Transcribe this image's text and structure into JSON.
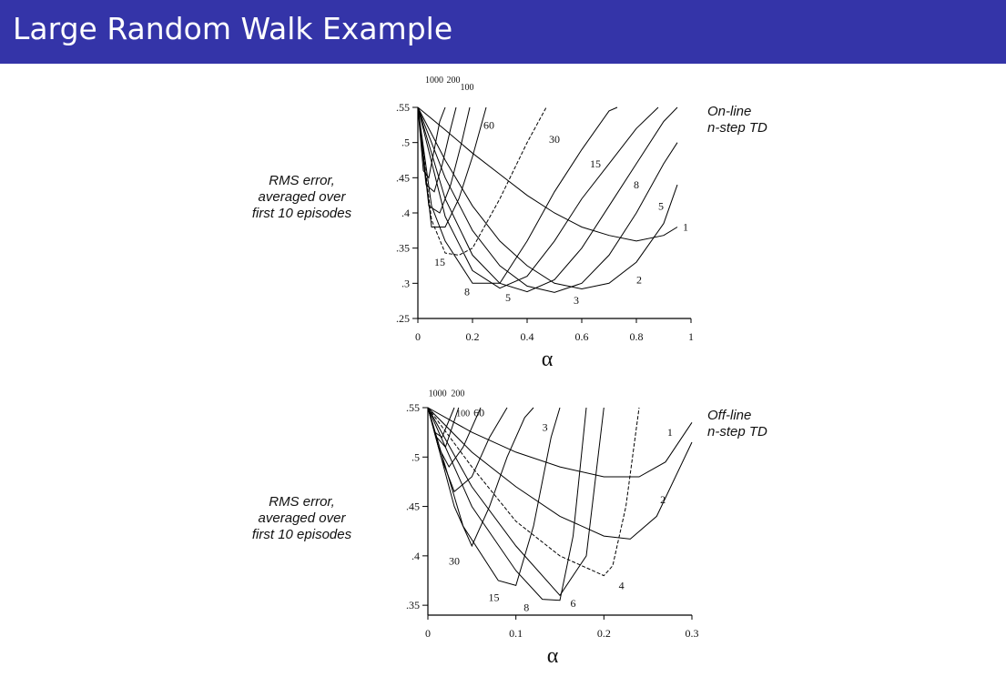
{
  "slide": {
    "title": "Large Random Walk Example"
  },
  "chart_data": [
    {
      "type": "line",
      "title": "",
      "side_label_line1": "On-line",
      "side_label_line2": "n-step TD",
      "xlabel": "α",
      "ylabel_lines": [
        "RMS error,",
        "averaged over",
        "first 10 episodes"
      ],
      "xlim": [
        0,
        1
      ],
      "ylim": [
        0.25,
        0.55
      ],
      "x_ticks": [
        "0",
        "0.2",
        "0.4",
        "0.6",
        "0.8",
        "1"
      ],
      "y_ticks": [
        ".25",
        ".3",
        ".35",
        ".4",
        ".45",
        ".5",
        ".55"
      ],
      "series": [
        {
          "name": "1",
          "x": [
            0,
            0.1,
            0.2,
            0.3,
            0.4,
            0.5,
            0.6,
            0.7,
            0.8,
            0.9,
            0.95
          ],
          "y": [
            0.55,
            0.518,
            0.485,
            0.455,
            0.425,
            0.4,
            0.38,
            0.368,
            0.36,
            0.368,
            0.38
          ]
        },
        {
          "name": "2",
          "x": [
            0,
            0.1,
            0.2,
            0.3,
            0.4,
            0.5,
            0.6,
            0.7,
            0.8,
            0.9,
            0.95
          ],
          "y": [
            0.55,
            0.475,
            0.41,
            0.36,
            0.325,
            0.3,
            0.292,
            0.3,
            0.33,
            0.385,
            0.44
          ]
        },
        {
          "name": "3",
          "x": [
            0,
            0.1,
            0.2,
            0.3,
            0.4,
            0.5,
            0.6,
            0.7,
            0.8,
            0.9,
            0.95
          ],
          "y": [
            0.55,
            0.45,
            0.375,
            0.325,
            0.296,
            0.287,
            0.3,
            0.34,
            0.4,
            0.47,
            0.5
          ]
        },
        {
          "name": "5",
          "x": [
            0,
            0.1,
            0.2,
            0.3,
            0.4,
            0.5,
            0.6,
            0.7,
            0.8,
            0.9,
            0.95
          ],
          "y": [
            0.55,
            0.42,
            0.34,
            0.3,
            0.288,
            0.305,
            0.35,
            0.41,
            0.47,
            0.53,
            0.55
          ]
        },
        {
          "name": "8",
          "x": [
            0,
            0.1,
            0.2,
            0.3,
            0.4,
            0.5,
            0.6,
            0.7,
            0.8,
            0.88
          ],
          "y": [
            0.55,
            0.395,
            0.318,
            0.293,
            0.31,
            0.36,
            0.42,
            0.47,
            0.52,
            0.55
          ]
        },
        {
          "name": "15",
          "x": [
            0,
            0.05,
            0.1,
            0.2,
            0.3,
            0.4,
            0.5,
            0.6,
            0.7,
            0.73
          ],
          "y": [
            0.55,
            0.41,
            0.36,
            0.3,
            0.3,
            0.36,
            0.43,
            0.49,
            0.545,
            0.55
          ]
        },
        {
          "name": "30",
          "x": [
            0,
            0.05,
            0.1,
            0.15,
            0.2,
            0.3,
            0.4,
            0.47
          ],
          "y": [
            0.55,
            0.39,
            0.343,
            0.34,
            0.35,
            0.42,
            0.5,
            0.55
          ]
        },
        {
          "name": "60",
          "x": [
            0,
            0.05,
            0.1,
            0.15,
            0.2,
            0.25
          ],
          "y": [
            0.55,
            0.38,
            0.38,
            0.42,
            0.48,
            0.55
          ]
        },
        {
          "name": "100",
          "x": [
            0,
            0.04,
            0.08,
            0.12,
            0.16,
            0.19
          ],
          "y": [
            0.55,
            0.41,
            0.4,
            0.44,
            0.5,
            0.55
          ]
        },
        {
          "name": "200",
          "x": [
            0,
            0.03,
            0.06,
            0.09,
            0.12,
            0.14
          ],
          "y": [
            0.55,
            0.44,
            0.43,
            0.47,
            0.52,
            0.55
          ]
        },
        {
          "name": "1000",
          "x": [
            0,
            0.02,
            0.04,
            0.06,
            0.08,
            0.1
          ],
          "y": [
            0.55,
            0.46,
            0.45,
            0.49,
            0.53,
            0.55
          ]
        }
      ],
      "curve_labels": [
        {
          "text": "1000",
          "x": 0.06,
          "y": 0.59
        },
        {
          "text": "200",
          "x": 0.13,
          "y": 0.59
        },
        {
          "text": "100",
          "x": 0.18,
          "y": 0.58
        },
        {
          "text": "60",
          "x": 0.26,
          "y": 0.525
        },
        {
          "text": "30",
          "x": 0.5,
          "y": 0.505
        },
        {
          "text": "15",
          "x": 0.65,
          "y": 0.47
        },
        {
          "text": "8",
          "x": 0.8,
          "y": 0.44
        },
        {
          "text": "5",
          "x": 0.89,
          "y": 0.41
        },
        {
          "text": "1",
          "x": 0.98,
          "y": 0.38
        },
        {
          "text": "2",
          "x": 0.81,
          "y": 0.305
        },
        {
          "text": "3",
          "x": 0.58,
          "y": 0.276
        },
        {
          "text": "5",
          "x": 0.33,
          "y": 0.28
        },
        {
          "text": "8",
          "x": 0.18,
          "y": 0.288
        },
        {
          "text": "15",
          "x": 0.08,
          "y": 0.33
        }
      ]
    },
    {
      "type": "line",
      "title": "",
      "side_label_line1": "Off-line",
      "side_label_line2": "n-step TD",
      "xlabel": "α",
      "ylabel_lines": [
        "RMS error,",
        "averaged over",
        "first 10 episodes"
      ],
      "xlim": [
        0,
        0.3
      ],
      "ylim": [
        0.34,
        0.55
      ],
      "x_ticks": [
        "0",
        "0.1",
        "0.2",
        "0.3"
      ],
      "y_ticks": [
        ".35",
        ".4",
        ".45",
        ".5",
        ".55"
      ],
      "series": [
        {
          "name": "1",
          "x": [
            0,
            0.05,
            0.1,
            0.15,
            0.2,
            0.24,
            0.27,
            0.3
          ],
          "y": [
            0.55,
            0.525,
            0.505,
            0.49,
            0.48,
            0.48,
            0.495,
            0.535
          ]
        },
        {
          "name": "2",
          "x": [
            0,
            0.05,
            0.1,
            0.15,
            0.2,
            0.23,
            0.26,
            0.3
          ],
          "y": [
            0.55,
            0.505,
            0.47,
            0.44,
            0.42,
            0.417,
            0.44,
            0.515
          ]
        },
        {
          "name": "4",
          "x": [
            0,
            0.05,
            0.1,
            0.15,
            0.2,
            0.21,
            0.225,
            0.24
          ],
          "y": [
            0.55,
            0.49,
            0.435,
            0.4,
            0.38,
            0.39,
            0.45,
            0.55
          ]
        },
        {
          "name": "6",
          "x": [
            0,
            0.05,
            0.1,
            0.15,
            0.18,
            0.2
          ],
          "y": [
            0.55,
            0.47,
            0.41,
            0.36,
            0.4,
            0.55
          ]
        },
        {
          "name": "8",
          "x": [
            0,
            0.05,
            0.1,
            0.13,
            0.15,
            0.165,
            0.18
          ],
          "y": [
            0.55,
            0.45,
            0.385,
            0.356,
            0.355,
            0.42,
            0.55
          ]
        },
        {
          "name": "15",
          "x": [
            0,
            0.04,
            0.08,
            0.1,
            0.12,
            0.14,
            0.15
          ],
          "y": [
            0.55,
            0.43,
            0.375,
            0.37,
            0.43,
            0.52,
            0.55
          ]
        },
        {
          "name": "30",
          "x": [
            0,
            0.03,
            0.05,
            0.07,
            0.09,
            0.11,
            0.12
          ],
          "y": [
            0.55,
            0.45,
            0.41,
            0.45,
            0.5,
            0.54,
            0.55
          ]
        },
        {
          "name": "60",
          "x": [
            0,
            0.015,
            0.03,
            0.05,
            0.07,
            0.09
          ],
          "y": [
            0.55,
            0.5,
            0.465,
            0.48,
            0.52,
            0.55
          ]
        },
        {
          "name": "100",
          "x": [
            0,
            0.012,
            0.024,
            0.04,
            0.06
          ],
          "y": [
            0.55,
            0.51,
            0.49,
            0.51,
            0.55
          ]
        },
        {
          "name": "200",
          "x": [
            0,
            0.01,
            0.02,
            0.035
          ],
          "y": [
            0.55,
            0.52,
            0.51,
            0.55
          ]
        },
        {
          "name": "1000",
          "x": [
            0,
            0.008,
            0.016,
            0.03
          ],
          "y": [
            0.55,
            0.525,
            0.52,
            0.55
          ]
        }
      ],
      "curve_labels": [
        {
          "text": "1000",
          "x": 0.011,
          "y": 0.565
        },
        {
          "text": "200",
          "x": 0.034,
          "y": 0.565
        },
        {
          "text": "100",
          "x": 0.04,
          "y": 0.545
        },
        {
          "text": "60",
          "x": 0.058,
          "y": 0.545
        },
        {
          "text": "3",
          "x": 0.133,
          "y": 0.53
        },
        {
          "text": "1",
          "x": 0.275,
          "y": 0.525
        },
        {
          "text": "2",
          "x": 0.267,
          "y": 0.457
        },
        {
          "text": "4",
          "x": 0.22,
          "y": 0.37
        },
        {
          "text": "6",
          "x": 0.165,
          "y": 0.352
        },
        {
          "text": "8",
          "x": 0.112,
          "y": 0.348
        },
        {
          "text": "15",
          "x": 0.075,
          "y": 0.358
        },
        {
          "text": "30",
          "x": 0.03,
          "y": 0.395
        }
      ]
    }
  ]
}
